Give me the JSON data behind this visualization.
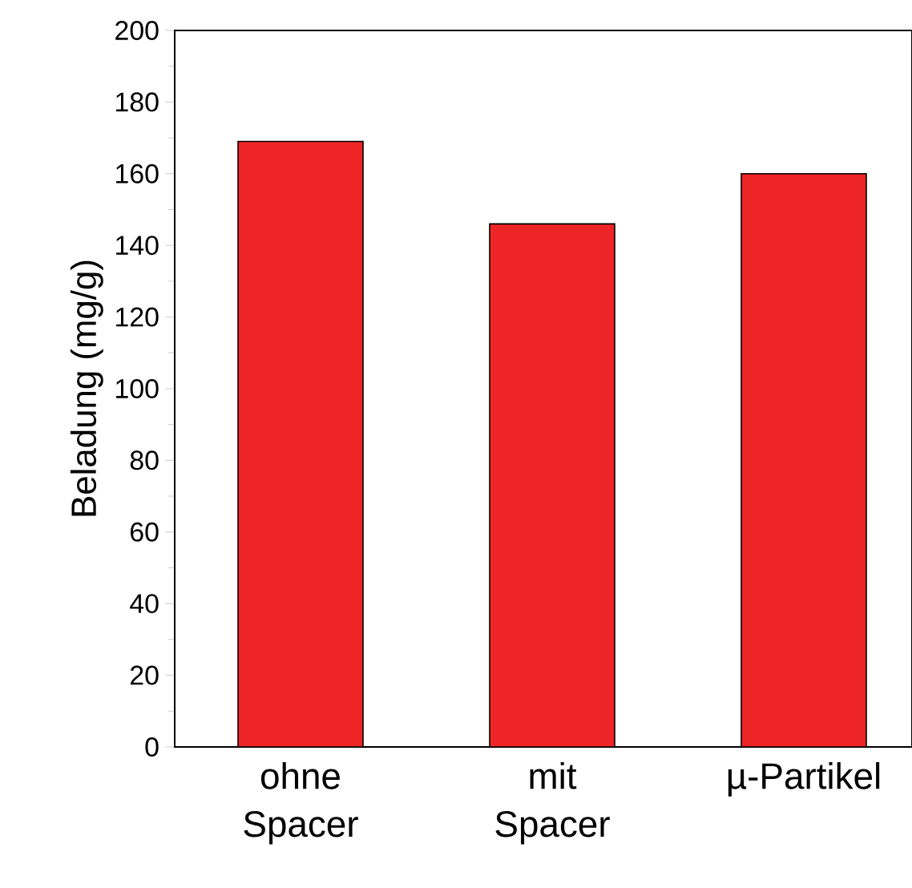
{
  "chart_data": {
    "type": "bar",
    "ylabel": "Beladung (mg/g)",
    "categories": [
      "ohne Spacer",
      "mit Spacer",
      "µ-Partikel"
    ],
    "values": [
      169,
      146,
      160
    ],
    "color": "#ee2526",
    "ylim": [
      0,
      200
    ],
    "yticks": [
      0,
      20,
      40,
      60,
      80,
      100,
      120,
      140,
      160,
      180,
      200
    ]
  }
}
